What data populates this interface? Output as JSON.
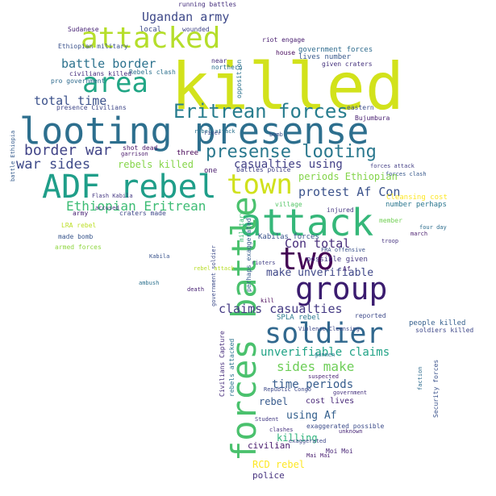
{
  "words": [
    {
      "text": "killed",
      "color": "#d2e21b"
    },
    {
      "text": "looting presense",
      "color": "#2d6f8e"
    },
    {
      "text": "ADF rebel",
      "color": "#1f9e89"
    },
    {
      "text": "attack",
      "color": "#35b779"
    },
    {
      "text": "attacked",
      "color": "#b5de2b"
    },
    {
      "text": "town",
      "color": "#d0e11c"
    },
    {
      "text": "forces battle",
      "color": "#4ac16d"
    },
    {
      "text": "group",
      "color": "#3b1c6f"
    },
    {
      "text": "two",
      "color": "#440154"
    },
    {
      "text": "soldier",
      "color": "#31688e"
    },
    {
      "text": "area",
      "color": "#21a685"
    },
    {
      "text": "Eritrean forces",
      "color": "#287d8e"
    },
    {
      "text": "presense looting",
      "color": "#2a788e"
    },
    {
      "text": "Ethiopian Eritrean",
      "color": "#3dbc74"
    },
    {
      "text": "Ugandan army",
      "color": "#3e4989"
    },
    {
      "text": "battle border",
      "color": "#2c728e"
    },
    {
      "text": "total time",
      "color": "#3b518b"
    },
    {
      "text": "border war",
      "color": "#414487"
    },
    {
      "text": "war sides",
      "color": "#3e4a89"
    },
    {
      "text": "rebels killed",
      "color": "#86d549"
    },
    {
      "text": "casualties using",
      "color": "#424086"
    },
    {
      "text": "periods Ethiopian",
      "color": "#84d44b"
    },
    {
      "text": "protest Af Con",
      "color": "#3b528b"
    },
    {
      "text": "Con total",
      "color": "#472d7b"
    },
    {
      "text": "make unverifiable",
      "color": "#3f4788"
    },
    {
      "text": "claims casualties",
      "color": "#443a83"
    },
    {
      "text": "unverifiable claims",
      "color": "#20a386"
    },
    {
      "text": "sides make",
      "color": "#6ece58"
    },
    {
      "text": "time periods",
      "color": "#365c8d"
    },
    {
      "text": "using Af",
      "color": "#34608d"
    },
    {
      "text": "killing",
      "color": "#2eb37c"
    },
    {
      "text": "civilian",
      "color": "#481a6c"
    },
    {
      "text": "RCD rebel",
      "color": "#fde725"
    },
    {
      "text": "police",
      "color": "#46327e"
    },
    {
      "text": "rebel",
      "color": "#375a8c"
    },
    {
      "text": "cost lives",
      "color": "#482878"
    },
    {
      "text": "Kabilas forces",
      "color": "#3a548c"
    },
    {
      "text": "government forces",
      "color": "#2f6c8e"
    },
    {
      "text": "lives number",
      "color": "#38588c"
    },
    {
      "text": "given craters",
      "color": "#46337e"
    },
    {
      "text": "Cleansing cost",
      "color": "#fde725"
    },
    {
      "text": "number perhaps",
      "color": "#2a768e"
    },
    {
      "text": "people killed",
      "color": "#355f8d"
    },
    {
      "text": "soldiers killed",
      "color": "#3f4889"
    },
    {
      "text": "possible given",
      "color": "#453882"
    },
    {
      "text": "SPLA rebel",
      "color": "#2a788e"
    },
    {
      "text": "Rebels clash",
      "color": "#2d718e"
    },
    {
      "text": "civilians killed",
      "color": "#472f7d"
    },
    {
      "text": "made bomb",
      "color": "#39568c"
    },
    {
      "text": "Ethiopian military",
      "color": "#3b528b"
    },
    {
      "text": "running battles",
      "color": "#46307e"
    },
    {
      "text": "Sudanese",
      "color": "#482475"
    },
    {
      "text": "local",
      "color": "#3e4c8a"
    },
    {
      "text": "wounded",
      "color": "#404588"
    },
    {
      "text": "riot engage",
      "color": "#481d6f"
    },
    {
      "text": "opposition",
      "color": "#2c728e"
    },
    {
      "text": "pro government",
      "color": "#2f6b8e"
    },
    {
      "text": "presence Civilians",
      "color": "#3f4788"
    },
    {
      "text": "armed forces",
      "color": "#90d743"
    },
    {
      "text": "LRA rebel",
      "color": "#bddf26"
    },
    {
      "text": "Moi Moi",
      "color": "#482576"
    },
    {
      "text": "Student",
      "color": "#443b84"
    },
    {
      "text": "exaggerated possible",
      "color": "#3d4d8a"
    },
    {
      "text": "Civilians Capture",
      "color": "#472e7c"
    },
    {
      "text": "rebels attacked",
      "color": "#2c738e"
    },
    {
      "text": "craters made",
      "color": "#3f4889"
    },
    {
      "text": "army",
      "color": "#482173"
    },
    {
      "text": "village",
      "color": "#55c667"
    },
    {
      "text": "injured",
      "color": "#453781"
    },
    {
      "text": "member",
      "color": "#73d056"
    },
    {
      "text": "four day",
      "color": "#2e6e8e"
    },
    {
      "text": "march",
      "color": "#481b6d"
    },
    {
      "text": "troop",
      "color": "#46337f"
    },
    {
      "text": "eastern",
      "color": "#3d4e8a"
    },
    {
      "text": "forces clash",
      "color": "#38598c"
    },
    {
      "text": "reported",
      "color": "#3e4a89"
    },
    {
      "text": "Bujumbura",
      "color": "#481f70"
    },
    {
      "text": "forces attack",
      "color": "#433e85"
    },
    {
      "text": "house",
      "color": "#46085c"
    },
    {
      "text": "shot dead",
      "color": "#481467"
    },
    {
      "text": "garrison",
      "color": "#48186a"
    },
    {
      "text": "three",
      "color": "#440154"
    },
    {
      "text": "one",
      "color": "#481a6c"
    },
    {
      "text": "death",
      "color": "#482374"
    },
    {
      "text": "ambush",
      "color": "#2c718e"
    },
    {
      "text": "rioters",
      "color": "#423f85"
    },
    {
      "text": "suspected",
      "color": "#482475"
    },
    {
      "text": "Republic Congo",
      "color": "#3e4989"
    },
    {
      "text": "government",
      "color": "#46327e"
    },
    {
      "text": "Security forces",
      "color": "#3b528b"
    },
    {
      "text": "faction",
      "color": "#2f6c8e"
    },
    {
      "text": "kill",
      "color": "#440154"
    },
    {
      "text": "Violence Cleansing",
      "color": "#3e4989"
    },
    {
      "text": "perhaps exaggerated",
      "color": "#365d8d"
    },
    {
      "text": "Af",
      "color": "#482878"
    },
    {
      "text": "gunmen",
      "color": "#2a788e"
    },
    {
      "text": "bomb",
      "color": "#3b528b"
    },
    {
      "text": "rebel attack",
      "color": "#2c728e"
    },
    {
      "text": "battles police",
      "color": "#424086"
    },
    {
      "text": "exaggerated",
      "color": "#3f4889"
    },
    {
      "text": "Flash Kabila",
      "color": "#453882"
    },
    {
      "text": "Kabila",
      "color": "#3a548c"
    },
    {
      "text": "unknown",
      "color": "#482576"
    },
    {
      "text": "clashes",
      "color": "#46307e"
    },
    {
      "text": "near",
      "color": "#472d7b"
    },
    {
      "text": "northern",
      "color": "#2d718e"
    },
    {
      "text": "river",
      "color": "#3e4a89"
    },
    {
      "text": "accused",
      "color": "#46337e"
    },
    {
      "text": "Mai Mai",
      "color": "#481d6f"
    },
    {
      "text": "FRA offensive",
      "color": "#3b518b"
    },
    {
      "text": "military",
      "color": "#3dbc74"
    },
    {
      "text": "battle Ethiopia",
      "color": "#365c8d"
    },
    {
      "text": "government soldier",
      "color": "#3e4c8a"
    },
    {
      "text": "rebel attack",
      "color": "#b8de29"
    }
  ]
}
